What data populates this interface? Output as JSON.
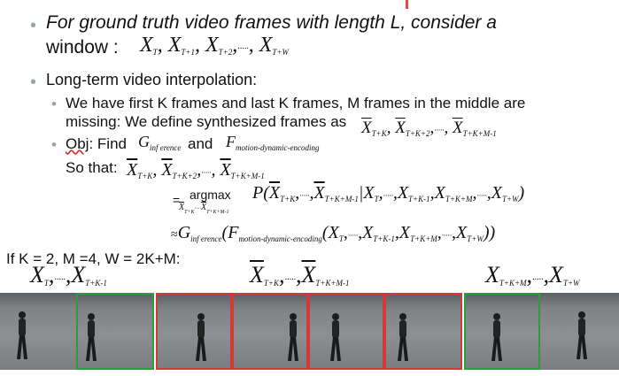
{
  "line1": {
    "text": "For ground truth video frames with length L, consider a"
  },
  "line2": {
    "text": "window :"
  },
  "line3": {
    "text": "Long-term video interpolation:"
  },
  "line4": {
    "text": "We have first K frames and last K frames, M frames in the middle are"
  },
  "line5": {
    "text": "missing: We define synthesized frames as"
  },
  "line6": {
    "obj": "Obj",
    "find": ": Find",
    "and": "and"
  },
  "line7": {
    "text": "So that:"
  },
  "argmax": "argmax",
  "setup": {
    "text": "If K = 2, M =4, W = 2K+M:"
  },
  "sym": {
    "X": "X",
    "dots": "·····",
    "comma": ",",
    "P": "P",
    "approx": "≈",
    "equals": "=",
    "G": "G",
    "F": "F",
    "sub_T": "T",
    "sub_T1": "T+1",
    "sub_T2": "T+2",
    "sub_TW": "T+W",
    "sub_TK": "T+K",
    "sub_TK2": "T+K+2",
    "sub_TKM1": "T+K+M-1",
    "sub_TK_1": "T+K-1",
    "sub_TKM": "T+K+M",
    "sub_inf": "inf erence",
    "sub_mde": "motion-dynamic-encoding"
  },
  "frames": {
    "borders": [
      "plain",
      "green",
      "red",
      "red",
      "red",
      "red",
      "green",
      "plain"
    ],
    "colors": {
      "green": "#2e9c3a",
      "red": "#d23a3a",
      "bullet": "#9aa3ad"
    }
  }
}
